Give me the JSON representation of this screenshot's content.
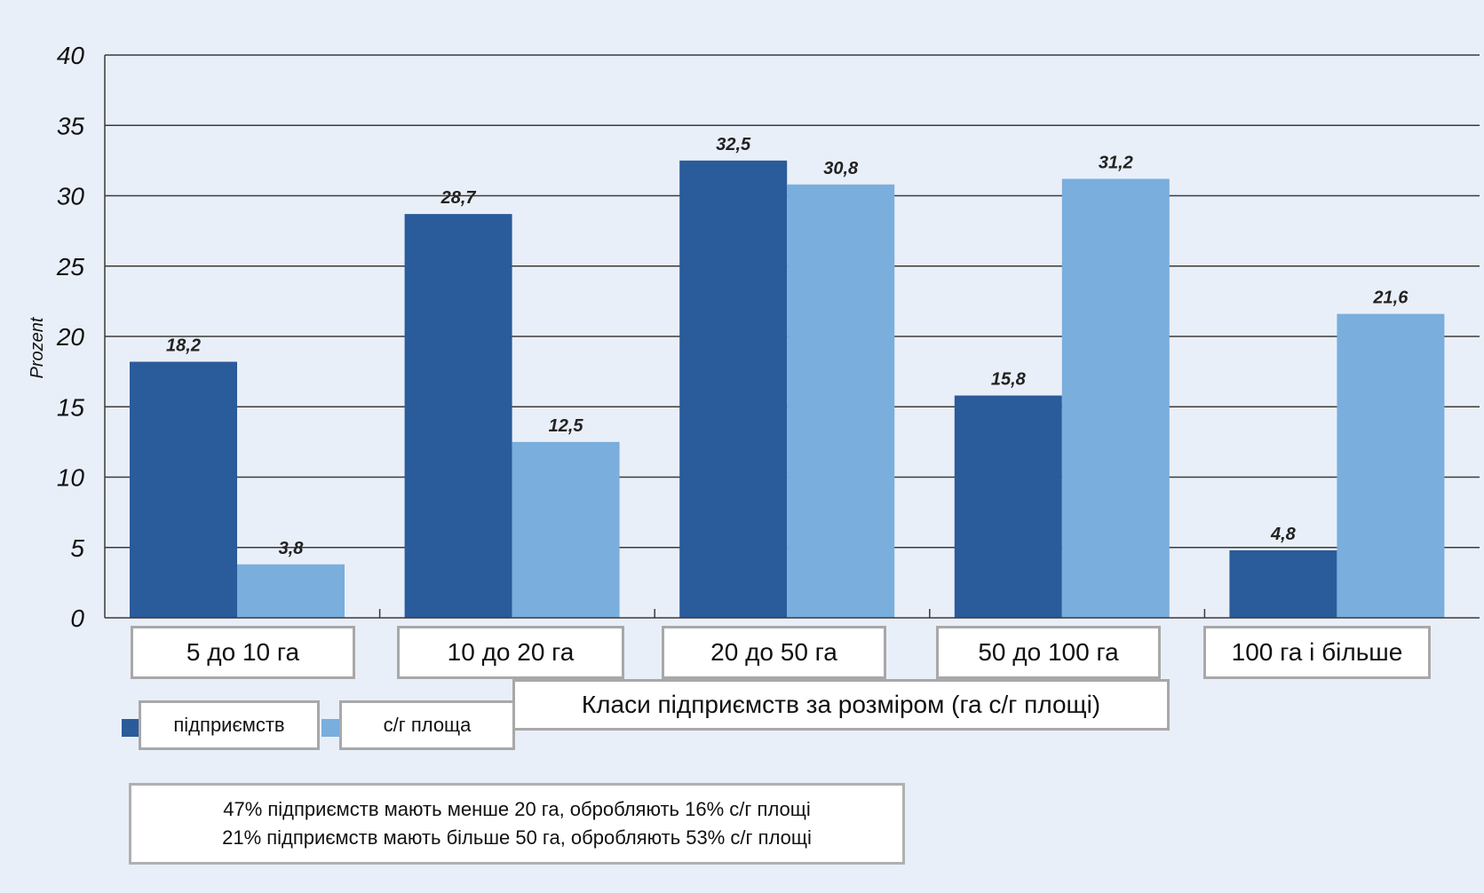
{
  "chart_data": {
    "type": "bar",
    "categories": [
      "5 до 10 га",
      "10 до 20 га",
      "20 до 50 га",
      "50 до 100 га",
      "100 га і більше"
    ],
    "series": [
      {
        "name": "підприємств",
        "values": [
          18.2,
          28.7,
          32.5,
          15.8,
          4.8
        ],
        "labels": [
          "18,2",
          "28,7",
          "32,5",
          "15,8",
          "4,8"
        ],
        "color": "#2a5b9a"
      },
      {
        "name": "с/г площа",
        "values": [
          3.8,
          12.5,
          30.8,
          31.2,
          21.6
        ],
        "labels": [
          "3,8",
          "12,5",
          "30,8",
          "31,2",
          "21,6"
        ],
        "color": "#79aedd"
      }
    ],
    "ylabel": "Prozent",
    "xlabel": "Класи підприємств за розміром (га с/г площі)",
    "ylim": [
      0,
      40
    ],
    "yticks": [
      "0",
      "5",
      "10",
      "15",
      "20",
      "25",
      "30",
      "35",
      "40"
    ],
    "grid": true,
    "legend_position": "bottom-left",
    "notes": [
      "47% підприємств мають менше 20 га, обробляють 16% с/г площі",
      "21% підприємств мають більше 50 га, обробляють 53% с/г площі"
    ],
    "background_color": "#e9eff8"
  }
}
